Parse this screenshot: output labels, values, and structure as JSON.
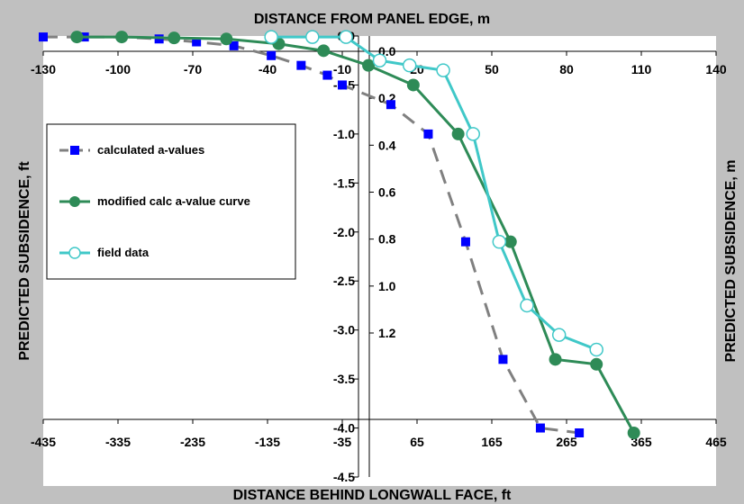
{
  "chart_data": {
    "type": "line",
    "title": "",
    "x_top_label": "DISTANCE FROM PANEL EDGE, m",
    "x_bottom_label": "DISTANCE BEHIND LONGWALL FACE, ft",
    "y_left_label": "PREDICTED SUBSIDENCE, ft",
    "y_right_label": "PREDICTED SUBSIDENCE, m",
    "x_bottom_range": [
      -435,
      465
    ],
    "x_bottom_ticks": [
      -435,
      -335,
      -235,
      -135,
      -35,
      65,
      165,
      265,
      365,
      465
    ],
    "x_top_range": [
      -130,
      140
    ],
    "x_top_ticks": [
      -130,
      -100,
      -70,
      -40,
      -10,
      20,
      50,
      80,
      110,
      140
    ],
    "y_left_range": [
      -4.5,
      0
    ],
    "y_left_ticks": [
      0.0,
      -0.5,
      -1.0,
      -1.5,
      -2.0,
      -2.5,
      -3.0,
      -3.5,
      -4.0,
      -4.5
    ],
    "y_left_tick_labels": [
      "0.0",
      "-0.5",
      "-1.0",
      "-1.5",
      "-2.0",
      "-2.5",
      "-3.0",
      "-3.5",
      "-4.0",
      "-4.5"
    ],
    "y_right_ticks": [
      0.0,
      0.2,
      0.4,
      0.6,
      0.8,
      1.0,
      1.2
    ],
    "y_right_tick_labels": [
      "0.0",
      "0.2",
      "0.4",
      "0.6",
      "0.8",
      "1.0",
      "1.2"
    ],
    "grid": false,
    "legend_position": "left",
    "series": [
      {
        "name": "calculated a-values",
        "color": "#808080",
        "marker_color": "#0000ff",
        "marker": "square",
        "line_style": "dashed",
        "x": [
          -435,
          -380,
          -330,
          -280,
          -230,
          -180,
          -130,
          -90,
          -55,
          -35,
          30,
          80,
          130,
          180,
          230,
          282
        ],
        "y": [
          -0.01,
          -0.01,
          -0.01,
          -0.03,
          -0.06,
          -0.1,
          -0.2,
          -0.3,
          -0.4,
          -0.5,
          -0.7,
          -1.0,
          -2.1,
          -3.3,
          -4.0,
          -4.05
        ]
      },
      {
        "name": "modified calc a-value curve",
        "color": "#2e8b57",
        "marker_color": "#2e8b57",
        "marker": "circle",
        "line_style": "solid",
        "x": [
          -390,
          -330,
          -260,
          -190,
          -120,
          -60,
          0,
          60,
          120,
          190,
          250,
          305,
          355
        ],
        "y": [
          -0.01,
          -0.01,
          -0.02,
          -0.03,
          -0.08,
          -0.15,
          -0.3,
          -0.5,
          -1.0,
          -2.1,
          -3.3,
          -3.35,
          -4.05
        ]
      },
      {
        "name": "field data",
        "color": "#40c8c8",
        "marker_color": "#40c8c8",
        "marker": "open-circle",
        "line_style": "solid",
        "x": [
          -130,
          -75,
          -30,
          15,
          55,
          100,
          140,
          175,
          212,
          255,
          305
        ],
        "y": [
          -0.01,
          -0.01,
          -0.01,
          -0.25,
          -0.3,
          -0.35,
          -1.0,
          -2.1,
          -2.75,
          -3.05,
          -3.2
        ]
      }
    ]
  }
}
